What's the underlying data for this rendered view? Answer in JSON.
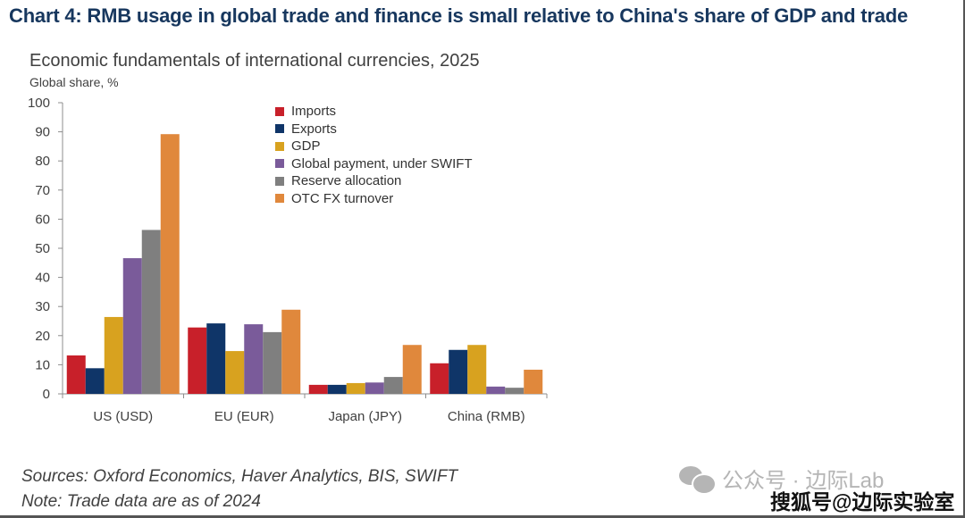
{
  "header": {
    "title": "Chart 4: RMB usage in global trade and finance is small relative to China's share of GDP and trade"
  },
  "chart_data": {
    "type": "bar",
    "title": "Economic fundamentals of international currencies, 2025",
    "xlabel": "",
    "ylabel": "Global share, %",
    "ylim": [
      0,
      100
    ],
    "yticks": [
      0,
      10,
      20,
      30,
      40,
      50,
      60,
      70,
      80,
      90,
      100
    ],
    "grid": false,
    "legend_position": "top-center",
    "categories": [
      "US (USD)",
      "EU (EUR)",
      "Japan (JPY)",
      "China (RMB)"
    ],
    "series": [
      {
        "name": "Imports",
        "color": "#c8202a",
        "values": [
          13.2,
          22.8,
          3.1,
          10.5
        ]
      },
      {
        "name": "Exports",
        "color": "#0f3568",
        "values": [
          8.8,
          24.2,
          3.1,
          15.1
        ]
      },
      {
        "name": "GDP",
        "color": "#d8a21f",
        "values": [
          26.4,
          14.7,
          3.7,
          16.8
        ]
      },
      {
        "name": "Global payment, under SWIFT",
        "color": "#7a5b9a",
        "values": [
          46.6,
          23.9,
          3.9,
          2.5
        ]
      },
      {
        "name": "Reserve allocation",
        "color": "#7f7f7f",
        "values": [
          56.3,
          21.2,
          5.8,
          2.1
        ]
      },
      {
        "name": "OTC FX turnover",
        "color": "#e0883c",
        "values": [
          89.2,
          28.9,
          16.8,
          8.3
        ]
      }
    ]
  },
  "footer": {
    "sources": "Sources: Oxford Economics, Haver Analytics, BIS, SWIFT",
    "note": "Note: Trade data are as of 2024"
  },
  "watermark": {
    "wechat": "公众号 · 边际Lab",
    "sohu": "搜狐号@边际实验室"
  }
}
